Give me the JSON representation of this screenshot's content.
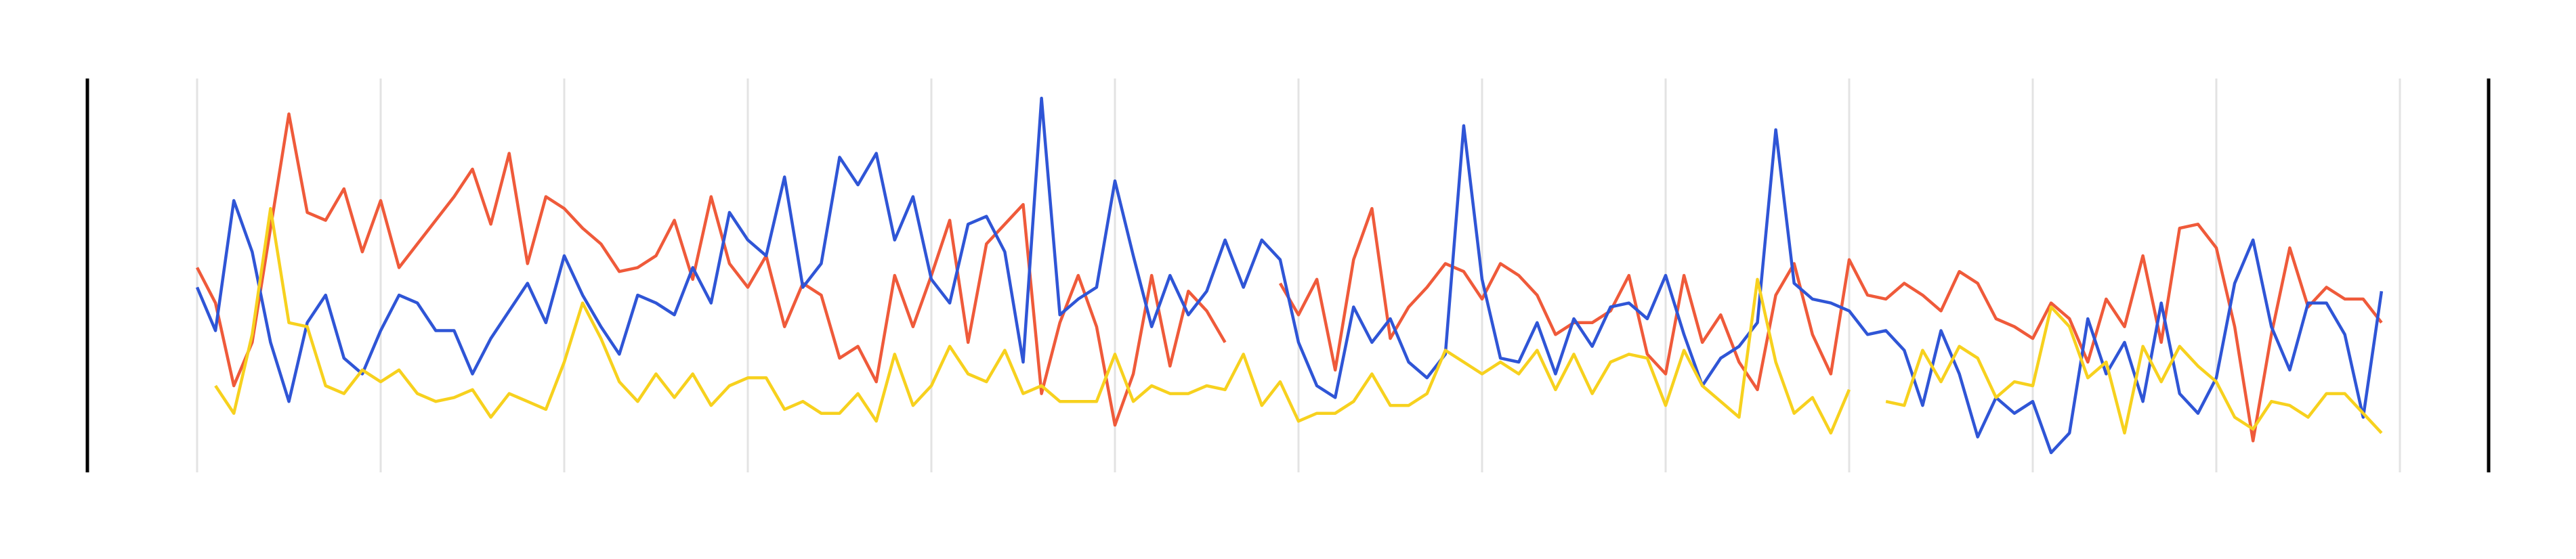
{
  "chart_data": {
    "type": "line",
    "x": [
      0,
      1,
      2,
      3,
      4,
      5,
      6,
      7,
      8,
      9,
      10,
      11,
      12,
      13,
      14,
      15,
      16,
      17,
      18,
      19,
      20,
      21,
      22,
      23,
      24,
      25,
      26,
      27,
      28,
      29,
      30,
      31,
      32,
      33,
      34,
      35,
      36,
      37,
      38,
      39,
      40,
      41,
      42,
      43,
      44,
      45,
      46,
      47,
      48,
      49,
      50,
      51,
      52,
      53,
      54,
      55,
      56,
      57,
      58,
      59,
      60,
      61,
      62,
      63,
      64,
      65,
      66,
      67,
      68,
      69,
      70,
      71,
      72,
      73,
      74,
      75,
      76,
      77,
      78,
      79,
      80,
      81,
      82,
      83,
      84,
      85,
      86,
      87,
      88,
      89,
      90,
      91,
      92,
      93,
      94,
      95,
      96,
      97,
      98,
      99,
      100,
      101,
      102,
      103,
      104,
      105,
      106,
      107,
      108,
      109,
      110,
      111,
      112,
      113,
      114,
      115,
      116,
      117,
      118,
      119
    ],
    "xlim": [
      0,
      120
    ],
    "xticks": [
      0,
      10,
      20,
      30,
      40,
      50,
      60,
      70,
      80,
      90,
      100,
      110,
      120
    ],
    "ylim": [
      0,
      100
    ],
    "grid": true,
    "series": [
      {
        "color": "#ef5a3a",
        "values": [
          52,
          43,
          22,
          33,
          62,
          91,
          66,
          64,
          72,
          56,
          69,
          52,
          58,
          64,
          70,
          77,
          63,
          81,
          53,
          70,
          67,
          62,
          58,
          51,
          52,
          55,
          64,
          49,
          70,
          53,
          47,
          55,
          37,
          48,
          45,
          29,
          32,
          23,
          50,
          37,
          50,
          64,
          33,
          58,
          63,
          68,
          20,
          38,
          50,
          37,
          12,
          25,
          50,
          27,
          46,
          41,
          33,
          null,
          null,
          48,
          40,
          49,
          26,
          54,
          67,
          34,
          42,
          47,
          53,
          51,
          44,
          53,
          50,
          45,
          35,
          38,
          38,
          41,
          50,
          30,
          25,
          50,
          33,
          40,
          28,
          21,
          45,
          53,
          35,
          25,
          54,
          45,
          44,
          48,
          45,
          41,
          51,
          48,
          39,
          37,
          34,
          43,
          39,
          28,
          44,
          37,
          55,
          33,
          62,
          63,
          57,
          37,
          8,
          35,
          57,
          42,
          47,
          44,
          44,
          38
        ]
      },
      {
        "color": "#2f55d6",
        "values": [
          47,
          36,
          69,
          56,
          33,
          18,
          38,
          45,
          29,
          25,
          36,
          45,
          43,
          36,
          36,
          25,
          34,
          41,
          48,
          38,
          55,
          45,
          37,
          30,
          45,
          43,
          40,
          52,
          43,
          66,
          59,
          55,
          75,
          47,
          53,
          80,
          73,
          81,
          59,
          70,
          49,
          43,
          63,
          65,
          56,
          28,
          95,
          40,
          44,
          47,
          74,
          55,
          37,
          50,
          40,
          46,
          59,
          47,
          59,
          54,
          33,
          22,
          19,
          42,
          33,
          39,
          28,
          24,
          30,
          88,
          49,
          29,
          28,
          38,
          25,
          39,
          32,
          42,
          43,
          39,
          50,
          35,
          22,
          29,
          32,
          38,
          87,
          48,
          44,
          43,
          41,
          35,
          36,
          31,
          17,
          36,
          25,
          9,
          19,
          15,
          18,
          5,
          10,
          39,
          25,
          33,
          18,
          43,
          20,
          15,
          24,
          48,
          59,
          37,
          26,
          43,
          43,
          35,
          14,
          46
        ]
      },
      {
        "color": "#f7d11e",
        "values": [
          null,
          22,
          15,
          35,
          67,
          38,
          37,
          22,
          20,
          26,
          23,
          26,
          20,
          18,
          19,
          21,
          14,
          20,
          18,
          16,
          28,
          43,
          34,
          23,
          18,
          25,
          19,
          25,
          17,
          22,
          24,
          24,
          16,
          18,
          15,
          15,
          20,
          13,
          30,
          17,
          22,
          32,
          25,
          23,
          31,
          20,
          22,
          18,
          18,
          18,
          30,
          18,
          22,
          20,
          20,
          22,
          21,
          30,
          17,
          23,
          13,
          15,
          15,
          18,
          25,
          17,
          17,
          20,
          31,
          28,
          25,
          28,
          25,
          31,
          21,
          30,
          20,
          28,
          30,
          29,
          17,
          31,
          22,
          18,
          14,
          49,
          28,
          15,
          19,
          10,
          21,
          null,
          18,
          17,
          31,
          23,
          32,
          29,
          19,
          23,
          22,
          42,
          37,
          24,
          28,
          10,
          32,
          23,
          32,
          27,
          23,
          14,
          11,
          18,
          17,
          14,
          20,
          20,
          15,
          10
        ]
      }
    ]
  }
}
